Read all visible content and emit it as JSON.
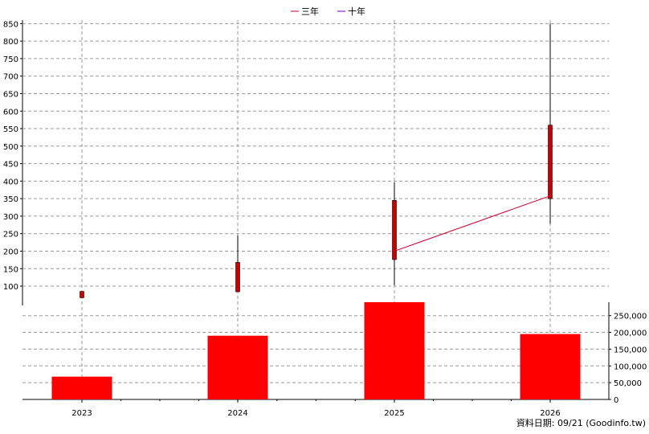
{
  "chart_data": [
    {
      "type": "candlestick",
      "categories": [
        "2023",
        "2024",
        "2025",
        "2026"
      ],
      "ohlc": [
        {
          "open": 67,
          "high": 85,
          "low": 67,
          "close": 85
        },
        {
          "open": 84,
          "high": 245,
          "low": 84,
          "close": 168
        },
        {
          "open": 176,
          "high": 397,
          "low": 103,
          "close": 345
        },
        {
          "open": 350,
          "high": 850,
          "low": 278,
          "close": 560
        }
      ],
      "series": [
        {
          "name": "三年",
          "color": "#cc0033",
          "values": [
            null,
            null,
            200,
            358
          ]
        },
        {
          "name": "十年",
          "color": "#6600cc",
          "values": [
            null,
            null,
            null,
            null
          ]
        }
      ],
      "y_ticks": [
        "100",
        "150",
        "200",
        "250",
        "300",
        "350",
        "400",
        "450",
        "500",
        "550",
        "600",
        "650",
        "700",
        "750",
        "800",
        "850"
      ],
      "ylim": [
        45,
        860
      ],
      "candle_color": "#cc0000",
      "grid": true,
      "legend_position": "top-center"
    },
    {
      "type": "bar",
      "categories": [
        "2023",
        "2024",
        "2025",
        "2026"
      ],
      "values": [
        68000,
        190000,
        290000,
        195000
      ],
      "y_ticks": [
        "0",
        "50,000",
        "100,000",
        "150,000",
        "200,000",
        "250,000"
      ],
      "ylim": [
        0,
        290000
      ],
      "bar_color": "#ff0000",
      "grid": true
    }
  ],
  "footer": {
    "data_date": "資料日期: 09/21 (Goodinfo.tw)"
  }
}
